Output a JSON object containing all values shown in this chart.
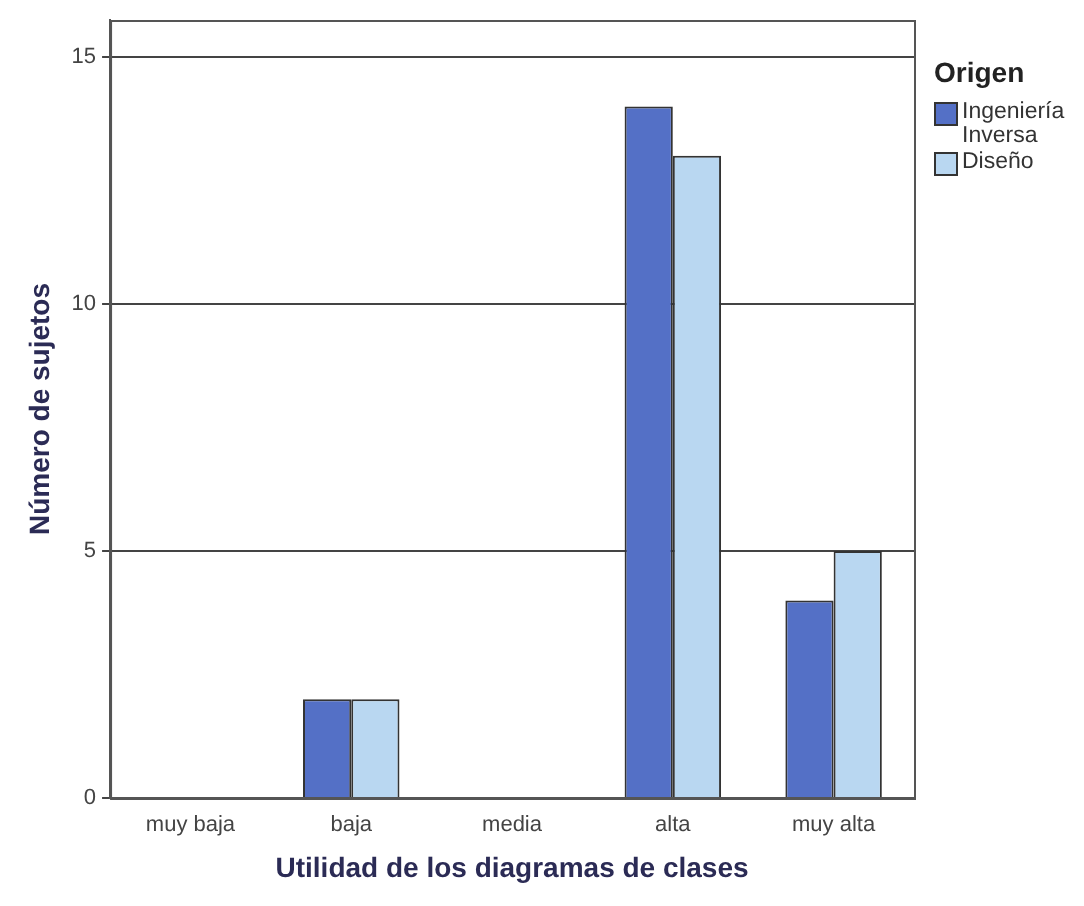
{
  "chart_data": {
    "type": "bar",
    "xlabel": "Utilidad de los diagramas de clases",
    "ylabel": "Número de sujetos",
    "legend_title": "Origen",
    "legend": "right",
    "grid": "y",
    "categories": [
      "muy baja",
      "baja",
      "media",
      "alta",
      "muy alta"
    ],
    "ylim": [
      0,
      15.75
    ],
    "yticks": [
      0,
      5,
      10,
      15
    ],
    "series": [
      {
        "name": "Ingeniería Inversa",
        "color": "#5470c6",
        "values": [
          0,
          2,
          0,
          14,
          4
        ]
      },
      {
        "name": "Diseño",
        "color": "#b9d7f1",
        "values": [
          0,
          2,
          0,
          13,
          5
        ]
      }
    ]
  }
}
